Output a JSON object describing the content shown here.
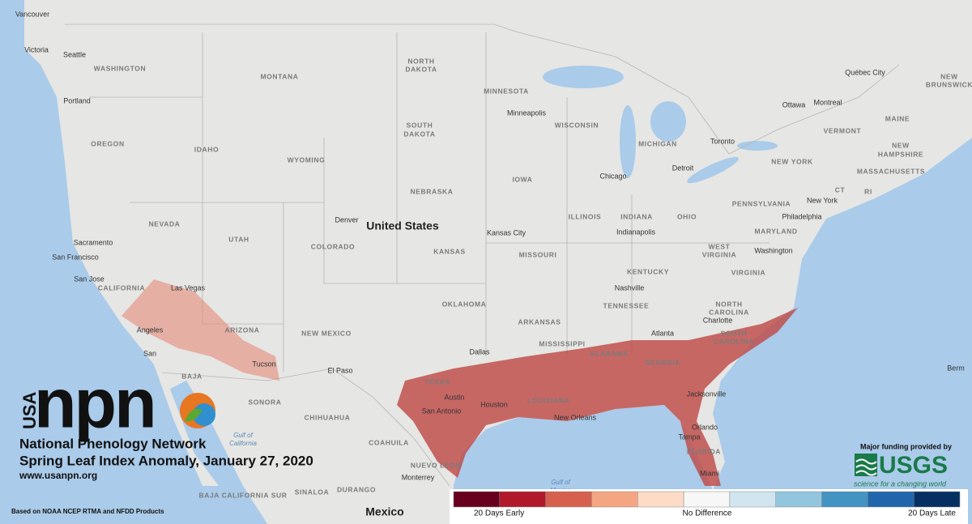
{
  "map": {
    "place_labels": [
      "Vancouver",
      "Victoria",
      "Seattle",
      "WASHINGTON",
      "Portland",
      "OREGON",
      "IDAHO",
      "MONTANA",
      "WYOMING",
      "NORTH",
      "DAKOTA",
      "SOUTH",
      "DAKOTA",
      "MINNESOTA",
      "Minneapolis",
      "WISCONSIN",
      "MICHIGAN",
      "Toronto",
      "Ottawa",
      "Montreal",
      "Québec City",
      "NEW",
      "BRUNSWICK",
      "MAINE",
      "VERMONT",
      "NEW",
      "HAMPSHIRE",
      "NEW YORK",
      "MASSACHUSETTS",
      "CT",
      "RI",
      "New York",
      "PENNSYLVANIA",
      "Philadelphia",
      "MARYLAND",
      "Washington",
      "NEBRASKA",
      "IOWA",
      "Chicago",
      "Detroit",
      "ILLINOIS",
      "INDIANA",
      "OHIO",
      "Indianapolis",
      "Denver",
      "NEVADA",
      "UTAH",
      "COLORADO",
      "Kansas City",
      "KANSAS",
      "MISSOURI",
      "WEST",
      "VIRGINIA",
      "KENTUCKY",
      "VIRGINIA",
      "Sacramento",
      "San Francisco",
      "San Jose",
      "CALIFORNIA",
      "Las Vegas",
      "Nashville",
      "TENNESSEE",
      "NORTH",
      "CAROLINA",
      "OKLAHOMA",
      "Charlotte",
      "ARKANSAS",
      "Angeles",
      "ARIZONA",
      "NEW MEXICO",
      "Atlanta",
      "SOUTH",
      "CAROLINA",
      "MISSISSIPPI",
      "ALABAMA",
      "GEORGIA",
      "Dallas",
      "San",
      "Tucson",
      "El Paso",
      "BAJA",
      "SONORA",
      "TEXAS",
      "Austin",
      "Houston",
      "LOUISIANA",
      "Jacksonville",
      "San Antonio",
      "CHIHUAHUA",
      "New Orleans",
      "Orlando",
      "Tampa",
      "FLORIDA",
      "COAHUILA",
      "NUEVO LEON",
      "Miami",
      "Monterrey",
      "DURANGO",
      "SINALOA",
      "BAJA CALIFORNIA SUR",
      "Berm"
    ],
    "country_labels": [
      "United States",
      "Mexico"
    ],
    "water_labels": [
      "Gulf of",
      "California",
      "Gulf of",
      "Mexico"
    ]
  },
  "branding": {
    "usa": "USA",
    "npn": "npn",
    "network": "National Phenology Network",
    "title": "Spring Leaf Index Anomaly, January 27, 2020",
    "url": "www.usanpn.org",
    "source": "Based on NOAA NCEP RTMA and NFDD Products",
    "funding": "Major funding provided by",
    "usgs": "USGS",
    "usgs_tagline": "science for a changing world"
  },
  "legend": {
    "colors": [
      "#67001f",
      "#b2182b",
      "#d6604d",
      "#f4a582",
      "#fddbc7",
      "#f7f7f7",
      "#d1e5f0",
      "#92c5de",
      "#4393c3",
      "#2166ac",
      "#053061"
    ],
    "label_left": "20 Days Early",
    "label_center": "No Difference",
    "label_right": "20 Days Late"
  }
}
